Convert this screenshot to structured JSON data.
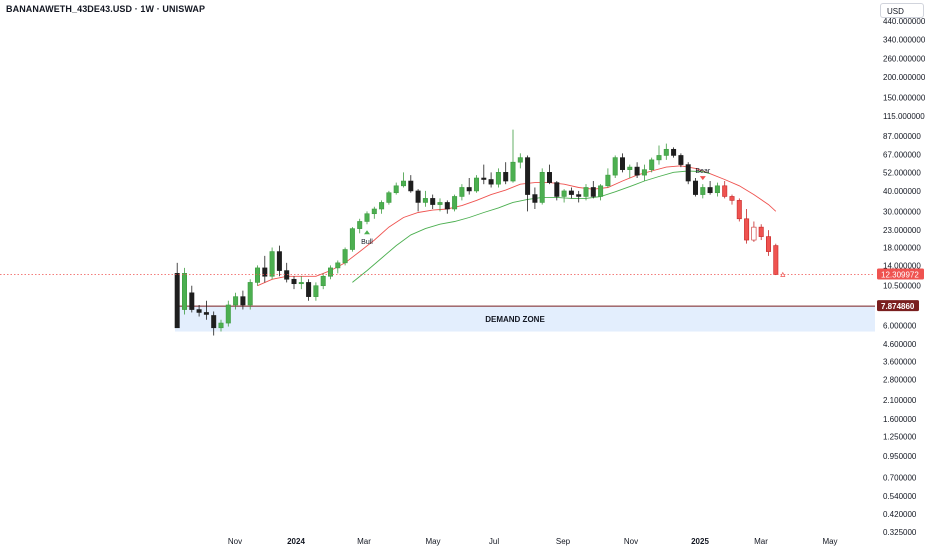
{
  "header": {
    "symbol_line": "BANANAWETH_43DE43.USD · 1W · UNISWAP",
    "currency": "USD"
  },
  "colors": {
    "up_fill": "#4caf50",
    "up_body": "#3d9b40",
    "down_fill": "#1e1e1e",
    "bear_fill": "#ef5350",
    "ema_fast": "#ef5350",
    "ema_slow": "#4caf50",
    "demand_zone": "#e3eefd",
    "demand_line": "#7a1f1f",
    "price_line": "#ef5350"
  },
  "chart_data": {
    "type": "candlestick",
    "y_scale": "log",
    "y_ticks": [
      "440.000000",
      "340.000000",
      "260.000000",
      "200.000000",
      "150.000000",
      "115.000000",
      "87.000000",
      "67.000000",
      "52.000000",
      "40.000000",
      "30.000000",
      "23.000000",
      "18.000000",
      "14.000000",
      "10.500000",
      "8.000000",
      "6.000000",
      "4.600000",
      "3.600000",
      "2.800000",
      "2.100000",
      "1.600000",
      "1.250000",
      "0.950000",
      "0.700000",
      "0.540000",
      "0.420000",
      "0.325000"
    ],
    "x_ticks": [
      {
        "label": "Nov",
        "bold": false
      },
      {
        "label": "2024",
        "bold": true
      },
      {
        "label": "Mar",
        "bold": false
      },
      {
        "label": "May",
        "bold": false
      },
      {
        "label": "Jul",
        "bold": false
      },
      {
        "label": "Sep",
        "bold": false
      },
      {
        "label": "Nov",
        "bold": false
      },
      {
        "label": "2025",
        "bold": true
      },
      {
        "label": "Mar",
        "bold": false
      },
      {
        "label": "May",
        "bold": false
      }
    ],
    "candles": [
      [
        12.5,
        14.5,
        5.8,
        5.8
      ],
      [
        7.5,
        13.5,
        7.0,
        12.5
      ],
      [
        9.5,
        10.5,
        7.2,
        7.5
      ],
      [
        7.5,
        8.0,
        6.8,
        7.2
      ],
      [
        7.2,
        8.5,
        6.5,
        7.0
      ],
      [
        6.9,
        7.3,
        5.2,
        5.8
      ],
      [
        5.8,
        6.5,
        5.5,
        6.2
      ],
      [
        6.2,
        8.5,
        5.9,
        8.0
      ],
      [
        8.0,
        9.5,
        7.5,
        9.0
      ],
      [
        9.0,
        9.8,
        7.5,
        8.0
      ],
      [
        8.0,
        11.5,
        7.5,
        11.0
      ],
      [
        11.0,
        14.0,
        10.5,
        13.5
      ],
      [
        13.5,
        16.0,
        11.0,
        12.0
      ],
      [
        12.0,
        18.0,
        11.5,
        17.0
      ],
      [
        17.0,
        18.5,
        12.0,
        13.0
      ],
      [
        13.0,
        14.5,
        11.0,
        11.5
      ],
      [
        11.5,
        12.0,
        10.0,
        10.8
      ],
      [
        10.8,
        12.0,
        10.0,
        11.0
      ],
      [
        11.0,
        11.5,
        8.5,
        9.0
      ],
      [
        9.0,
        11.0,
        8.5,
        10.5
      ],
      [
        10.5,
        12.5,
        10.0,
        12.0
      ],
      [
        12.0,
        14.0,
        11.5,
        13.5
      ],
      [
        13.5,
        15.0,
        12.5,
        14.5
      ],
      [
        14.5,
        18.0,
        14.0,
        17.5
      ],
      [
        17.5,
        24.0,
        17.0,
        23.5
      ],
      [
        23.5,
        27.0,
        22.0,
        26.0
      ],
      [
        26.0,
        30.0,
        25.0,
        29.0
      ],
      [
        29.0,
        32.0,
        27.0,
        31.0
      ],
      [
        31.0,
        35.0,
        29.0,
        34.0
      ],
      [
        34.0,
        40.0,
        33.0,
        39.0
      ],
      [
        39.0,
        45.0,
        38.0,
        43.0
      ],
      [
        43.0,
        52.0,
        42.0,
        46.0
      ],
      [
        46.0,
        50.0,
        39.0,
        40.0
      ],
      [
        40.0,
        41.0,
        30.0,
        34.0
      ],
      [
        34.0,
        40.0,
        32.0,
        36.0
      ],
      [
        36.0,
        38.0,
        31.0,
        33.0
      ],
      [
        33.0,
        36.0,
        30.0,
        34.0
      ],
      [
        34.0,
        35.0,
        29.0,
        31.0
      ],
      [
        31.0,
        38.0,
        30.0,
        37.0
      ],
      [
        37.0,
        44.0,
        35.0,
        42.0
      ],
      [
        42.0,
        48.0,
        38.0,
        40.0
      ],
      [
        40.0,
        50.0,
        39.0,
        48.0
      ],
      [
        48.0,
        58.0,
        44.0,
        47.0
      ],
      [
        47.0,
        52.0,
        42.0,
        44.0
      ],
      [
        44.0,
        55.0,
        42.0,
        52.0
      ],
      [
        52.0,
        60.0,
        44.0,
        46.0
      ],
      [
        46.0,
        95.0,
        45.0,
        60.0
      ],
      [
        60.0,
        68.0,
        55.0,
        64.0
      ],
      [
        64.0,
        66.0,
        30.0,
        38.0
      ],
      [
        38.0,
        42.0,
        31.0,
        34.0
      ],
      [
        34.0,
        55.0,
        33.0,
        52.0
      ],
      [
        52.0,
        58.0,
        44.0,
        45.0
      ],
      [
        45.0,
        46.0,
        35.0,
        37.0
      ],
      [
        37.0,
        41.0,
        34.0,
        40.0
      ],
      [
        40.0,
        42.0,
        36.0,
        38.0
      ],
      [
        38.0,
        40.0,
        34.0,
        37.0
      ],
      [
        37.0,
        44.0,
        35.0,
        42.0
      ],
      [
        42.0,
        46.0,
        36.0,
        37.0
      ],
      [
        37.0,
        44.0,
        35.0,
        43.0
      ],
      [
        43.0,
        55.0,
        42.0,
        50.0
      ],
      [
        50.0,
        66.0,
        48.0,
        64.0
      ],
      [
        64.0,
        68.0,
        52.0,
        54.0
      ],
      [
        54.0,
        58.0,
        48.0,
        56.0
      ],
      [
        56.0,
        60.0,
        48.0,
        50.0
      ],
      [
        50.0,
        58.0,
        46.0,
        54.0
      ],
      [
        54.0,
        64.0,
        52.0,
        62.0
      ],
      [
        62.0,
        76.0,
        58.0,
        66.0
      ],
      [
        66.0,
        78.0,
        62.0,
        72.0
      ],
      [
        72.0,
        74.0,
        64.0,
        66.0
      ],
      [
        66.0,
        68.0,
        56.0,
        58.0
      ],
      [
        58.0,
        60.0,
        44.0,
        46.0
      ],
      [
        46.0,
        48.0,
        37.0,
        38.0
      ],
      [
        38.0,
        44.0,
        36.0,
        42.0
      ],
      [
        42.0,
        46.0,
        38.0,
        39.0
      ],
      [
        39.0,
        45.0,
        37.0,
        43.0
      ],
      [
        43.0,
        46.0,
        36.0,
        37.0
      ],
      [
        37.0,
        38.0,
        33.0,
        35.0
      ],
      [
        35.0,
        36.0,
        26.0,
        27.0
      ],
      [
        27.0,
        31.0,
        19.0,
        20.0
      ],
      [
        20.0,
        26.0,
        19.5,
        24.0
      ],
      [
        24.0,
        25.0,
        20.0,
        21.0
      ],
      [
        21.0,
        23.0,
        16.0,
        17.0
      ],
      [
        18.5,
        19.0,
        12.2,
        12.3
      ]
    ],
    "bear_color_start_index": 75,
    "last_price_label": "12.309972",
    "demand_zone": {
      "label": "DEMAND ZONE",
      "top_price": 7.87486,
      "top_label": "7.874860",
      "bottom_price": 5.5,
      "start_index": 0
    },
    "signals": [
      {
        "label": "Bull",
        "candle_index": 26,
        "direction": "up"
      },
      {
        "label": "Bear",
        "candle_index": 72,
        "direction": "down"
      }
    ],
    "ema_fast": [
      [
        11,
        10.5
      ],
      [
        13,
        11.5
      ],
      [
        15,
        12.0
      ],
      [
        17,
        12.0
      ],
      [
        19,
        12.0
      ],
      [
        21,
        13.0
      ],
      [
        23,
        14.5
      ],
      [
        25,
        17.0
      ],
      [
        27,
        20.0
      ],
      [
        29,
        24.0
      ],
      [
        31,
        27.5
      ],
      [
        33,
        29.5
      ],
      [
        35,
        30.5
      ],
      [
        37,
        31.0
      ],
      [
        39,
        32.5
      ],
      [
        41,
        35.0
      ],
      [
        43,
        38.0
      ],
      [
        45,
        40.5
      ],
      [
        47,
        44.0
      ],
      [
        49,
        45.0
      ],
      [
        51,
        45.0
      ],
      [
        53,
        44.0
      ],
      [
        55,
        42.0
      ],
      [
        57,
        41.0
      ],
      [
        59,
        42.0
      ],
      [
        61,
        46.0
      ],
      [
        63,
        50.0
      ],
      [
        65,
        53.0
      ],
      [
        67,
        56.0
      ],
      [
        69,
        57.0
      ],
      [
        71,
        55.0
      ],
      [
        73,
        51.0
      ],
      [
        75,
        47.0
      ],
      [
        77,
        43.0
      ],
      [
        79,
        38.0
      ],
      [
        81,
        33.0
      ],
      [
        82,
        30.0
      ]
    ],
    "ema_slow": [
      [
        24,
        11.0
      ],
      [
        26,
        13.0
      ],
      [
        28,
        15.5
      ],
      [
        30,
        18.5
      ],
      [
        32,
        21.5
      ],
      [
        34,
        23.5
      ],
      [
        36,
        25.0
      ],
      [
        38,
        26.0
      ],
      [
        40,
        27.5
      ],
      [
        42,
        29.5
      ],
      [
        44,
        31.5
      ],
      [
        46,
        34.0
      ],
      [
        48,
        35.5
      ],
      [
        50,
        36.5
      ],
      [
        52,
        36.5
      ],
      [
        54,
        36.0
      ],
      [
        56,
        36.0
      ],
      [
        58,
        37.0
      ],
      [
        60,
        39.5
      ],
      [
        62,
        42.5
      ],
      [
        64,
        46.0
      ],
      [
        66,
        49.0
      ],
      [
        68,
        52.0
      ],
      [
        70,
        53.0
      ],
      [
        72,
        52.5
      ],
      [
        73,
        51.0
      ]
    ]
  }
}
